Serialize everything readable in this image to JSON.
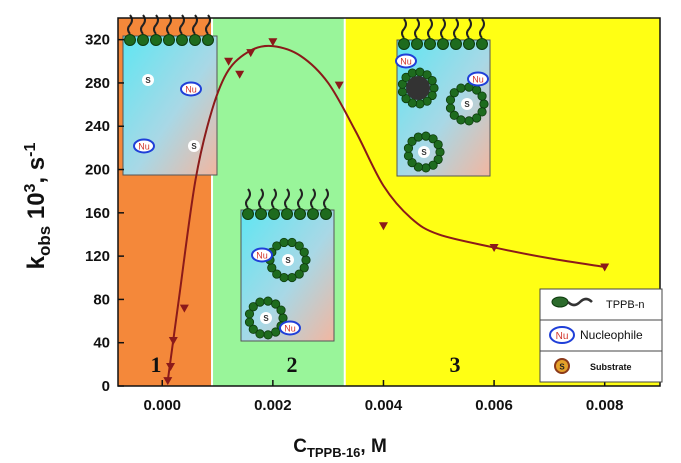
{
  "chart_data": {
    "type": "line",
    "xlabel_main": "C",
    "xlabel_sub": "TPPB-16",
    "xlabel_unit": ", M",
    "ylabel_main": "k",
    "ylabel_sub": "obs",
    "ylabel_mid": " 10",
    "ylabel_sup3": "3",
    "ylabel_unit": ", s",
    "ylabel_sup": "-1",
    "xlim": [
      -0.0008,
      0.009
    ],
    "ylim": [
      0,
      340
    ],
    "x_ticks": [
      "0.000",
      "0.002",
      "0.004",
      "0.006",
      "0.008"
    ],
    "x_tick_values": [
      0,
      0.002,
      0.004,
      0.006,
      0.008
    ],
    "y_ticks": [
      "0",
      "40",
      "80",
      "120",
      "160",
      "200",
      "240",
      "280",
      "320"
    ],
    "y_tick_values": [
      0,
      40,
      80,
      120,
      160,
      200,
      240,
      280,
      320
    ],
    "series": [
      {
        "color": "#8b1a1a",
        "points": [
          {
            "x": 0.0001,
            "y": 5
          },
          {
            "x": 0.00015,
            "y": 18
          },
          {
            "x": 0.0002,
            "y": 42
          },
          {
            "x": 0.0004,
            "y": 72
          },
          {
            "x": 0.0012,
            "y": 300
          },
          {
            "x": 0.0014,
            "y": 288
          },
          {
            "x": 0.0016,
            "y": 308
          },
          {
            "x": 0.002,
            "y": 318
          },
          {
            "x": 0.0032,
            "y": 278
          },
          {
            "x": 0.004,
            "y": 148
          },
          {
            "x": 0.006,
            "y": 128
          },
          {
            "x": 0.008,
            "y": 110
          }
        ],
        "curve": [
          {
            "x": 0.0001,
            "y": 5
          },
          {
            "x": 0.0003,
            "y": 80
          },
          {
            "x": 0.0006,
            "y": 190
          },
          {
            "x": 0.0009,
            "y": 255
          },
          {
            "x": 0.0012,
            "y": 292
          },
          {
            "x": 0.0016,
            "y": 310
          },
          {
            "x": 0.002,
            "y": 314
          },
          {
            "x": 0.0025,
            "y": 305
          },
          {
            "x": 0.003,
            "y": 280
          },
          {
            "x": 0.0035,
            "y": 235
          },
          {
            "x": 0.004,
            "y": 185
          },
          {
            "x": 0.0045,
            "y": 155
          },
          {
            "x": 0.005,
            "y": 140
          },
          {
            "x": 0.006,
            "y": 128
          },
          {
            "x": 0.007,
            "y": 118
          },
          {
            "x": 0.008,
            "y": 110
          }
        ]
      }
    ],
    "regions": [
      {
        "label": "1",
        "x_from": -0.0008,
        "x_to": 0.0009,
        "color": "#f4883a"
      },
      {
        "label": "2",
        "x_from": 0.0009,
        "x_to": 0.0033,
        "color": "#99f59a"
      },
      {
        "label": "3",
        "x_from": 0.0033,
        "x_to": 0.009,
        "color": "#ffff14"
      }
    ],
    "legend": {
      "position": "bottom-right",
      "items": [
        {
          "icon": "tppb-molecule-icon",
          "label": "TPPB-n"
        },
        {
          "icon": "nucleophile-icon",
          "label": "Nucleophile"
        },
        {
          "icon": "substrate-icon",
          "label": "Substrate"
        }
      ]
    },
    "insets": {
      "nu_label": "Nu",
      "s_label": "S"
    }
  }
}
